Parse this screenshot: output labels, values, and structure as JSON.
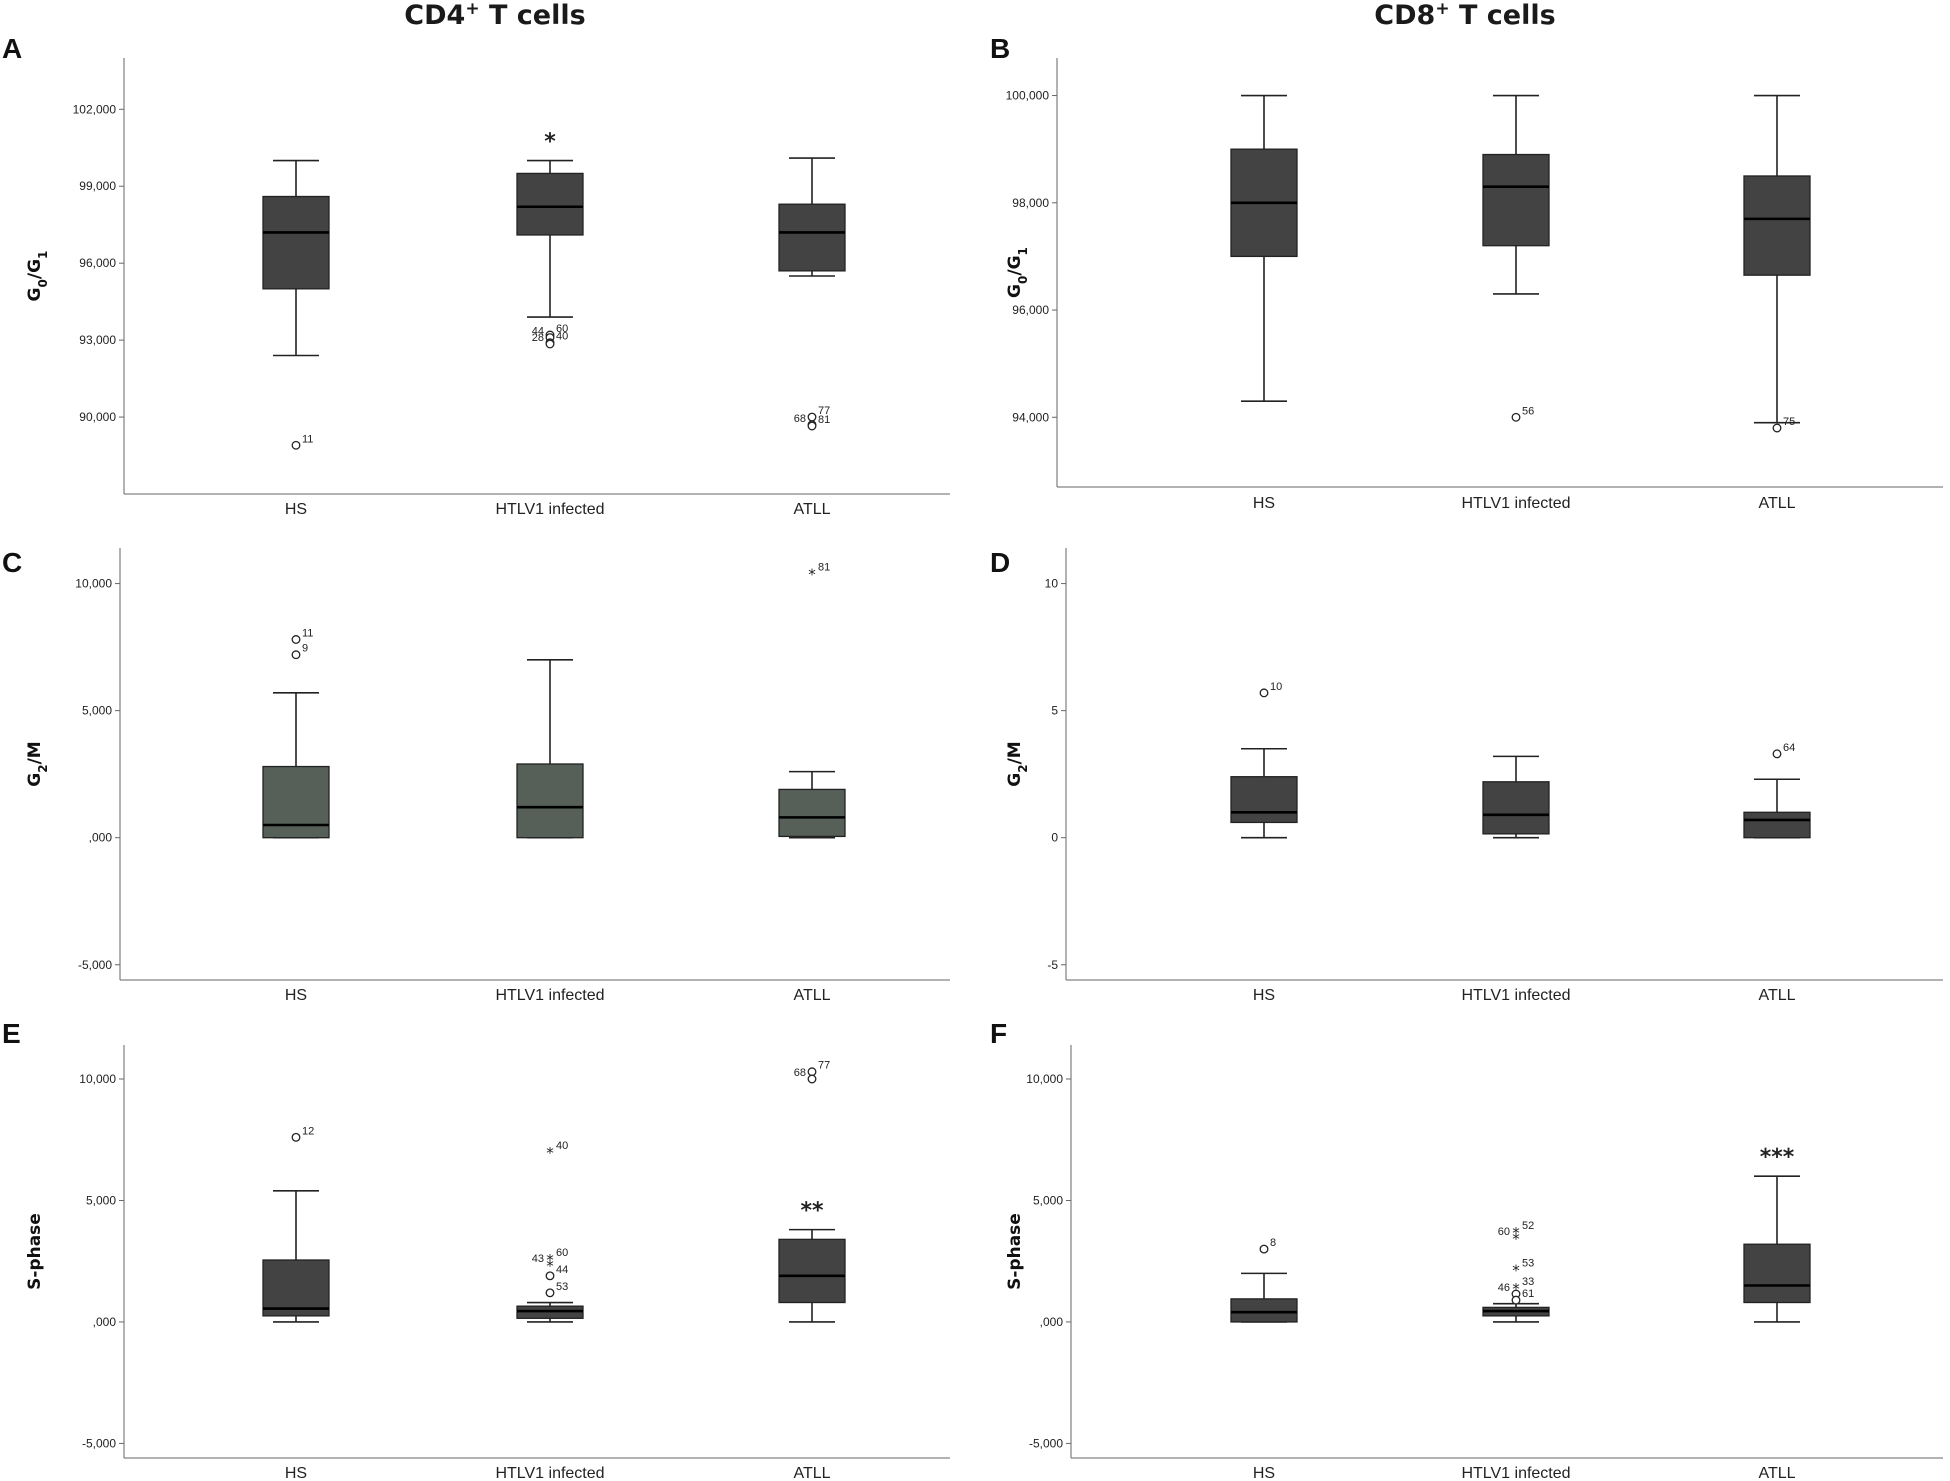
{
  "figure": {
    "column_titles": [
      {
        "text": "CD4",
        "sup": "+",
        "rest": " T cells"
      },
      {
        "text": "CD8",
        "sup": "+",
        "rest": " T cells"
      }
    ]
  },
  "colors": {
    "box_dark": "#434343",
    "box_green": "#566059",
    "axis": "#666666"
  },
  "chart_data": [
    {
      "panel": "A",
      "type": "boxplot",
      "ylabel": "G0/G1",
      "ylabel_main": "G",
      "ylabel_sub1": "0",
      "ylabel_mid": "/G",
      "ylabel_sub2": "1",
      "ylim": [
        87000,
        104000
      ],
      "ticks": [
        {
          "v": 90000,
          "label": "90,000"
        },
        {
          "v": 93000,
          "label": "93,000"
        },
        {
          "v": 96000,
          "label": "96,000"
        },
        {
          "v": 99000,
          "label": "99,000"
        },
        {
          "v": 102000,
          "label": "102,000"
        }
      ],
      "categories": [
        "HS",
        "HTLV1 infected",
        "ATLL"
      ],
      "box_color": "box_dark",
      "boxes": [
        {
          "low": 92400,
          "q1": 95000,
          "median": 97200,
          "q3": 98600,
          "high": 100000,
          "outliers": [
            {
              "v": 88900,
              "kind": "circle",
              "label": "11"
            }
          ]
        },
        {
          "low": 93900,
          "q1": 97100,
          "median": 98200,
          "q3": 99500,
          "high": 100000,
          "sig": "*",
          "outliers": [
            {
              "v": 93200,
              "kind": "circle",
              "label": "60"
            },
            {
              "v": 93100,
              "kind": "circle",
              "label": "44"
            },
            {
              "v": 92900,
              "kind": "circle",
              "label": "40"
            },
            {
              "v": 92850,
              "kind": "circle",
              "label": "28"
            }
          ]
        },
        {
          "low": 95500,
          "q1": 95700,
          "median": 97200,
          "q3": 98300,
          "high": 100100,
          "outliers": [
            {
              "v": 90000,
              "kind": "circle",
              "label": "77"
            },
            {
              "v": 89700,
              "kind": "circle",
              "label": "68"
            },
            {
              "v": 89650,
              "kind": "circle",
              "label": "81"
            }
          ]
        }
      ]
    },
    {
      "panel": "B",
      "type": "boxplot",
      "ylabel": "G0/G1",
      "ylabel_main": "G",
      "ylabel_sub1": "0",
      "ylabel_mid": "/G",
      "ylabel_sub2": "1",
      "ylim": [
        92700,
        100700
      ],
      "ticks": [
        {
          "v": 94000,
          "label": "94,000"
        },
        {
          "v": 96000,
          "label": "96,000"
        },
        {
          "v": 98000,
          "label": "98,000"
        },
        {
          "v": 100000,
          "label": "100,000"
        }
      ],
      "categories": [
        "HS",
        "HTLV1 infected",
        "ATLL"
      ],
      "box_color": "box_dark",
      "boxes": [
        {
          "low": 94300,
          "q1": 97000,
          "median": 98000,
          "q3": 99000,
          "high": 100000,
          "outliers": []
        },
        {
          "low": 96300,
          "q1": 97200,
          "median": 98300,
          "q3": 98900,
          "high": 100000,
          "outliers": [
            {
              "v": 94000,
              "kind": "circle",
              "label": "56"
            }
          ]
        },
        {
          "low": 93900,
          "q1": 96650,
          "median": 97700,
          "q3": 98500,
          "high": 100000,
          "outliers": [
            {
              "v": 93800,
              "kind": "circle",
              "label": "75"
            }
          ]
        }
      ]
    },
    {
      "panel": "C",
      "type": "boxplot",
      "ylabel": "G2/M",
      "ylabel_main": "G",
      "ylabel_sub1": "2",
      "ylabel_mid": "/M",
      "ylabel_sub2": "",
      "ylim": [
        -5600,
        11400
      ],
      "ticks": [
        {
          "v": -5000,
          "label": "-5,000"
        },
        {
          "v": 0,
          "label": ",000"
        },
        {
          "v": 5000,
          "label": "5,000"
        },
        {
          "v": 10000,
          "label": "10,000"
        }
      ],
      "categories": [
        "HS",
        "HTLV1 infected",
        "ATLL"
      ],
      "box_color": "box_green",
      "boxes": [
        {
          "low": 0,
          "q1": 0,
          "median": 500,
          "q3": 2800,
          "high": 5700,
          "outliers": [
            {
              "v": 7800,
              "kind": "circle",
              "label": "11"
            },
            {
              "v": 7200,
              "kind": "circle",
              "label": "9"
            }
          ]
        },
        {
          "low": 0,
          "q1": 0,
          "median": 1200,
          "q3": 2900,
          "high": 7000,
          "outliers": []
        },
        {
          "low": 0,
          "q1": 50,
          "median": 800,
          "q3": 1900,
          "high": 2600,
          "outliers": [
            {
              "v": 10400,
              "kind": "star",
              "label": "81"
            }
          ]
        }
      ]
    },
    {
      "panel": "D",
      "type": "boxplot",
      "ylabel": "G2/M",
      "ylabel_main": "G",
      "ylabel_sub1": "2",
      "ylabel_mid": "/M",
      "ylabel_sub2": "",
      "ylim": [
        -5.6,
        11.4
      ],
      "ticks": [
        {
          "v": -5,
          "label": "-5"
        },
        {
          "v": 0,
          "label": "0"
        },
        {
          "v": 5,
          "label": "5"
        },
        {
          "v": 10,
          "label": "10"
        }
      ],
      "categories": [
        "HS",
        "HTLV1 infected",
        "ATLL"
      ],
      "box_color": "box_dark",
      "boxes": [
        {
          "low": 0,
          "q1": 0.6,
          "median": 1.0,
          "q3": 2.4,
          "high": 3.5,
          "outliers": [
            {
              "v": 5.7,
              "kind": "circle",
              "label": "10"
            }
          ]
        },
        {
          "low": 0,
          "q1": 0.15,
          "median": 0.9,
          "q3": 2.2,
          "high": 3.2,
          "outliers": []
        },
        {
          "low": 0,
          "q1": 0.0,
          "median": 0.7,
          "q3": 1.0,
          "high": 2.3,
          "outliers": [
            {
              "v": 3.3,
              "kind": "circle",
              "label": "64"
            }
          ]
        }
      ]
    },
    {
      "panel": "E",
      "type": "boxplot",
      "ylabel": "S-phase",
      "ylabel_main": "S-phase",
      "ylabel_sub1": "",
      "ylabel_mid": "",
      "ylabel_sub2": "",
      "ylim": [
        -5600,
        11400
      ],
      "ticks": [
        {
          "v": -5000,
          "label": "-5,000"
        },
        {
          "v": 0,
          "label": ",000"
        },
        {
          "v": 5000,
          "label": "5,000"
        },
        {
          "v": 10000,
          "label": "10,000"
        }
      ],
      "categories": [
        "HS",
        "HTLV1 infected",
        "ATLL"
      ],
      "box_color": "box_dark",
      "boxes": [
        {
          "low": 0,
          "q1": 250,
          "median": 550,
          "q3": 2550,
          "high": 5400,
          "outliers": [
            {
              "v": 7600,
              "kind": "circle",
              "label": "12"
            }
          ]
        },
        {
          "low": 0,
          "q1": 150,
          "median": 450,
          "q3": 650,
          "high": 800,
          "outliers": [
            {
              "v": 7000,
              "kind": "star",
              "label": "40"
            },
            {
              "v": 2600,
              "kind": "star",
              "label": "60"
            },
            {
              "v": 2350,
              "kind": "star",
              "label": "43"
            },
            {
              "v": 1900,
              "kind": "circle",
              "label": "44"
            },
            {
              "v": 1200,
              "kind": "circle",
              "label": "53"
            }
          ]
        },
        {
          "low": 0,
          "q1": 800,
          "median": 1900,
          "q3": 3400,
          "high": 3800,
          "sig": "**",
          "outliers": [
            {
              "v": 10300,
              "kind": "circle",
              "label": "77"
            },
            {
              "v": 10000,
              "kind": "circle",
              "label": "68"
            }
          ]
        }
      ]
    },
    {
      "panel": "F",
      "type": "boxplot",
      "ylabel": "S-phase",
      "ylabel_main": "S-phase",
      "ylabel_sub1": "",
      "ylabel_mid": "",
      "ylabel_sub2": "",
      "ylim": [
        -5600,
        11400
      ],
      "ticks": [
        {
          "v": -5000,
          "label": "-5,000"
        },
        {
          "v": 0,
          "label": ",000"
        },
        {
          "v": 5000,
          "label": "5,000"
        },
        {
          "v": 10000,
          "label": "10,000"
        }
      ],
      "categories": [
        "HS",
        "HTLV1 infected",
        "ATLL"
      ],
      "box_color": "box_dark",
      "boxes": [
        {
          "low": 0,
          "q1": 0,
          "median": 400,
          "q3": 950,
          "high": 2000,
          "outliers": [
            {
              "v": 3000,
              "kind": "circle",
              "label": "8"
            }
          ]
        },
        {
          "low": 0,
          "q1": 250,
          "median": 450,
          "q3": 600,
          "high": 750,
          "outliers": [
            {
              "v": 3700,
              "kind": "star",
              "label": "52"
            },
            {
              "v": 3450,
              "kind": "star",
              "label": "60"
            },
            {
              "v": 2150,
              "kind": "star",
              "label": "53"
            },
            {
              "v": 1400,
              "kind": "star",
              "label": "33"
            },
            {
              "v": 1150,
              "kind": "circle",
              "label": "46"
            },
            {
              "v": 900,
              "kind": "circle",
              "label": "61"
            }
          ]
        },
        {
          "low": 0,
          "q1": 800,
          "median": 1500,
          "q3": 3200,
          "high": 6000,
          "sig": "***",
          "outliers": []
        }
      ]
    }
  ]
}
